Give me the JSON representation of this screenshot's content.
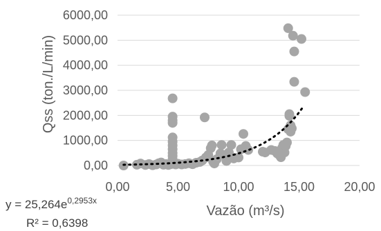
{
  "chart_data": {
    "type": "scatter",
    "xlabel": "Vazão (m³/s)",
    "ylabel": "Qss (ton./L/min)",
    "xlim": [
      0,
      20
    ],
    "ylim": [
      0,
      6000
    ],
    "x_ticks": [
      "0,00",
      "5,00",
      "10,00",
      "15,00",
      "20,00"
    ],
    "y_ticks": [
      "0,00",
      "1000,00",
      "2000,00",
      "3000,00",
      "4000,00",
      "5000,00",
      "6000,00"
    ],
    "grid": "horizontal",
    "marker_color": "#a6a6a6",
    "trendline_color": "#000000",
    "trendline": {
      "type": "exponential",
      "a": 25.264,
      "b": 0.2953,
      "x_range": [
        0.5,
        15.3
      ]
    },
    "equation": {
      "prefix": "y = 25,264e",
      "exponent": "0,2953x",
      "r2": "R² = 0,6398"
    },
    "points": [
      [
        0.5,
        0
      ],
      [
        1.6,
        30
      ],
      [
        1.9,
        80
      ],
      [
        2.3,
        20
      ],
      [
        2.6,
        60
      ],
      [
        2.9,
        10
      ],
      [
        3.2,
        40
      ],
      [
        3.4,
        90
      ],
      [
        3.6,
        120
      ],
      [
        3.8,
        30
      ],
      [
        4.0,
        60
      ],
      [
        4.2,
        20
      ],
      [
        4.4,
        50
      ],
      [
        4.55,
        2680
      ],
      [
        4.55,
        1950
      ],
      [
        4.55,
        1800
      ],
      [
        4.55,
        1700
      ],
      [
        4.55,
        1120
      ],
      [
        4.55,
        950
      ],
      [
        4.55,
        800
      ],
      [
        4.55,
        650
      ],
      [
        4.55,
        500
      ],
      [
        4.55,
        380
      ],
      [
        4.55,
        250
      ],
      [
        4.55,
        150
      ],
      [
        4.55,
        80
      ],
      [
        4.8,
        40
      ],
      [
        5.0,
        70
      ],
      [
        5.3,
        40
      ],
      [
        5.6,
        60
      ],
      [
        5.9,
        90
      ],
      [
        6.2,
        50
      ],
      [
        6.5,
        110
      ],
      [
        6.8,
        140
      ],
      [
        7.0,
        200
      ],
      [
        7.2,
        1920
      ],
      [
        7.3,
        320
      ],
      [
        7.5,
        420
      ],
      [
        7.7,
        690
      ],
      [
        7.8,
        800
      ],
      [
        7.9,
        150
      ],
      [
        8.0,
        80
      ],
      [
        8.2,
        250
      ],
      [
        8.5,
        480
      ],
      [
        8.6,
        820
      ],
      [
        8.8,
        420
      ],
      [
        9.0,
        180
      ],
      [
        9.2,
        520
      ],
      [
        9.4,
        820
      ],
      [
        9.6,
        280
      ],
      [
        10.0,
        320
      ],
      [
        10.2,
        650
      ],
      [
        10.4,
        1260
      ],
      [
        10.6,
        780
      ],
      [
        10.8,
        620
      ],
      [
        12.0,
        550
      ],
      [
        12.2,
        520
      ],
      [
        12.7,
        620
      ],
      [
        13.0,
        580
      ],
      [
        13.2,
        480
      ],
      [
        13.4,
        400
      ],
      [
        13.5,
        330
      ],
      [
        13.6,
        700
      ],
      [
        13.7,
        820
      ],
      [
        13.8,
        520
      ],
      [
        13.9,
        780
      ],
      [
        14.0,
        920
      ],
      [
        14.1,
        1450
      ],
      [
        14.1,
        5480
      ],
      [
        14.2,
        2050
      ],
      [
        14.2,
        1980
      ],
      [
        14.3,
        1600
      ],
      [
        14.3,
        1350
      ],
      [
        14.4,
        1480
      ],
      [
        14.5,
        5180
      ],
      [
        14.6,
        4550
      ],
      [
        14.6,
        3340
      ],
      [
        15.2,
        5050
      ],
      [
        15.5,
        2930
      ]
    ]
  }
}
